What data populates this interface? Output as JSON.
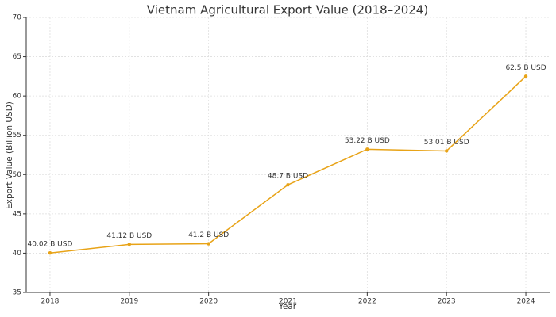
{
  "chart_data": {
    "type": "line",
    "title": "Vietnam Agricultural Export Value (2018–2024)",
    "x_label": "Year",
    "y_label": "Export Value (Billion USD)",
    "x": [
      2018,
      2019,
      2020,
      2021,
      2022,
      2023,
      2024
    ],
    "values": [
      40.02,
      41.12,
      41.2,
      48.7,
      53.22,
      53.01,
      62.5
    ],
    "value_labels": [
      "40.02 B USD",
      "41.12 B USD",
      "41.2 B USD",
      "48.7 B USD",
      "53.22 B USD",
      "53.01 B USD",
      "62.5 B USD"
    ],
    "color": "#e8a317",
    "xlim": [
      2017.7,
      2024.3
    ],
    "xticks": [
      2018,
      2019,
      2020,
      2021,
      2022,
      2023,
      2024
    ],
    "ylim": [
      35,
      70
    ],
    "yticks": [
      35,
      40,
      45,
      50,
      55,
      60,
      65,
      70
    ],
    "grid": true
  }
}
